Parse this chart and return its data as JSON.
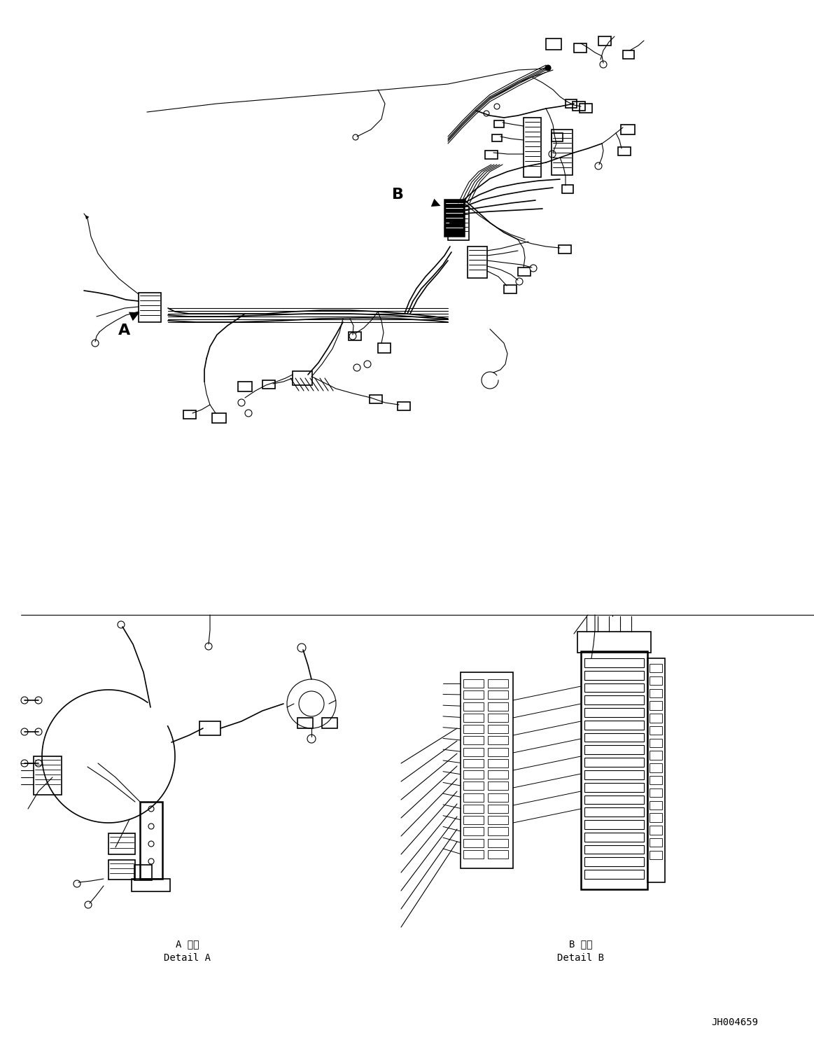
{
  "background_color": "#ffffff",
  "line_color": "#000000",
  "figure_width": 11.63,
  "figure_height": 14.88,
  "dpi": 100,
  "label_A": "A",
  "label_B": "B",
  "detail_A_jp": "A 詳細",
  "detail_A_en": "Detail A",
  "detail_B_jp": "B 詳細",
  "detail_B_en": "Detail B",
  "part_number": "JH004659",
  "main_wiring_color": "#000000",
  "connector_color": "#000000"
}
